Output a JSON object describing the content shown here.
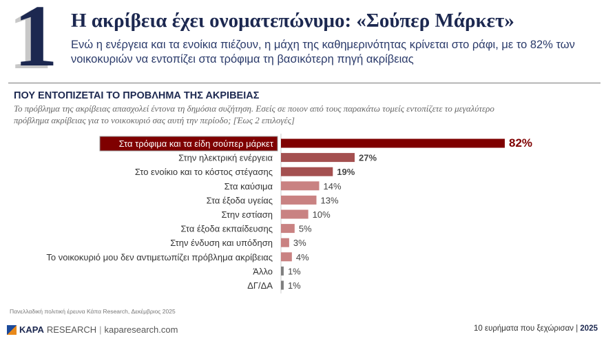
{
  "header": {
    "number": "1",
    "title": "Η ακρίβεια έχει ονοματεπώνυμο: «Σούπερ Μάρκετ»",
    "subtitle": "Ενώ η ενέργεια και τα ενοίκια πιέζουν, η μάχη της καθημερινότητας κρίνεται στο ράφι, με το 82% των νοικοκυριών να εντοπίζει στα τρόφιμα τη βασικότερη πηγή ακρίβειας"
  },
  "section": {
    "title": "ΠΟΥ ΕΝΤΟΠΙΖΕΤΑΙ ΤΟ ΠΡΟΒΛΗΜΑ ΤΗΣ ΑΚΡΙΒΕΙΑΣ",
    "question": "Το πρόβλημα της ακρίβειας απασχολεί έντονα τη δημόσια συζήτηση. Εσείς σε ποιον από τους παρακάτω τομείς εντοπίζετε το μεγαλύτερο πρόβλημα ακρίβειας για το νοικοκυριό σας αυτή την περίοδο; [Έως 2 επιλογές]"
  },
  "chart_data": {
    "type": "bar",
    "orientation": "horizontal",
    "categories": [
      "Στα τρόφιμα και τα είδη σούπερ μάρκετ",
      "Στην ηλεκτρική ενέργεια",
      "Στο ενοίκιο και το κόστος στέγασης",
      "Στα καύσιμα",
      "Στα έξοδα υγείας",
      "Στην εστίαση",
      "Στα έξοδα εκπαίδευσης",
      "Στην ένδυση και υπόδηση",
      "Το νοικοκυριό μου δεν αντιμετωπίζει πρόβλημα ακρίβειας",
      "Άλλο",
      "ΔΓ/ΔΑ"
    ],
    "values": [
      82,
      27,
      19,
      14,
      13,
      10,
      5,
      3,
      4,
      1,
      1
    ],
    "unit": "%",
    "colors": [
      "#7f0000",
      "#a45050",
      "#a45050",
      "#c98282",
      "#c98282",
      "#c98282",
      "#c98282",
      "#c98282",
      "#c98282",
      "#7f7f7f",
      "#7f7f7f"
    ],
    "xlim": [
      0,
      82
    ]
  },
  "footer": {
    "source": "Πανελλαδική πολιτική έρευνα Κάπα Research, Δεκέμβριος 2025",
    "brand": "KAPA",
    "brand2": "RESEARCH",
    "site": "kaparesearch.com",
    "series": "10 ευρήματα που ξεχώρισαν | ",
    "year": "2025"
  }
}
